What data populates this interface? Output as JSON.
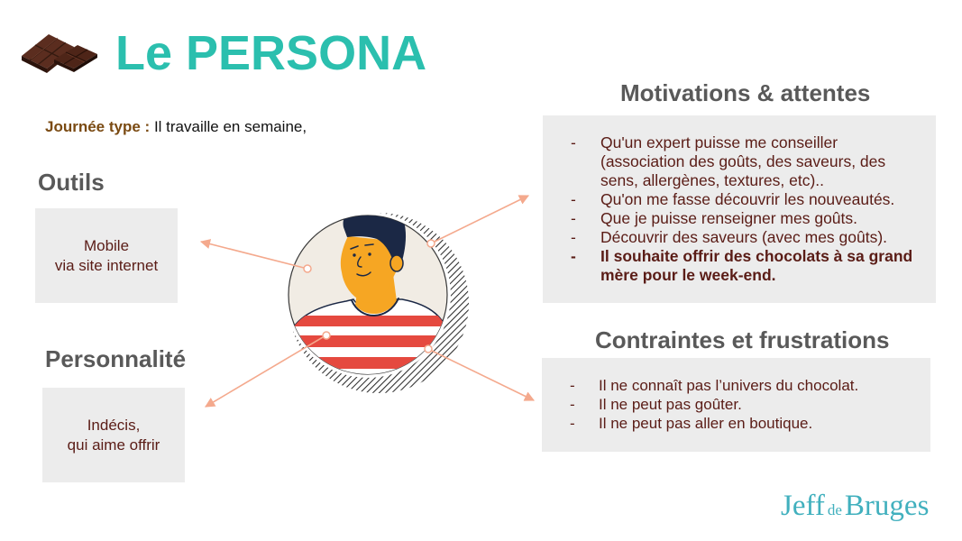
{
  "slide": {
    "title": "Le PERSONA",
    "day_label": "Journée type :",
    "day_text": "Il travaille en semaine,"
  },
  "outils": {
    "heading": "Outils",
    "lines": [
      "Mobile",
      "via site internet"
    ]
  },
  "personnalite": {
    "heading": "Personnalité",
    "lines": [
      "Indécis,",
      "qui aime offrir"
    ]
  },
  "motivations": {
    "heading": "Motivations & attentes",
    "bullet": "-",
    "items": [
      "Qu'un expert puisse me conseiller (association des goûts, des saveurs, des sens, allergènes, textures, etc)..",
      "Qu'on me fasse découvrir les nouveautés.",
      "Que je puisse renseigner mes goûts.",
      "Découvrir des saveurs (avec mes goûts).",
      "Il souhaite offrir des chocolats à sa grand mère pour le week-end."
    ]
  },
  "contraintes": {
    "heading": "Contraintes et frustrations",
    "bullet": "-",
    "items": [
      "Il ne connaît pas l’univers du chocolat.",
      "Il ne peut pas goûter.",
      "Il ne peut pas aller en boutique."
    ]
  },
  "brand": {
    "logo_words": [
      "Jeff",
      "de",
      "Bruges"
    ]
  },
  "icons": {
    "chocolate": "chocolate-bar-icon",
    "persona": "persona-avatar-illustration",
    "connector": "arrow-icon"
  },
  "colors": {
    "title": "#2bbfae",
    "heading": "#595959",
    "label": "#7a4a12",
    "body_text": "#5a1c16",
    "box_fill": "#ececec",
    "arrow": "#f4a98d",
    "logo": "#41b0be"
  }
}
